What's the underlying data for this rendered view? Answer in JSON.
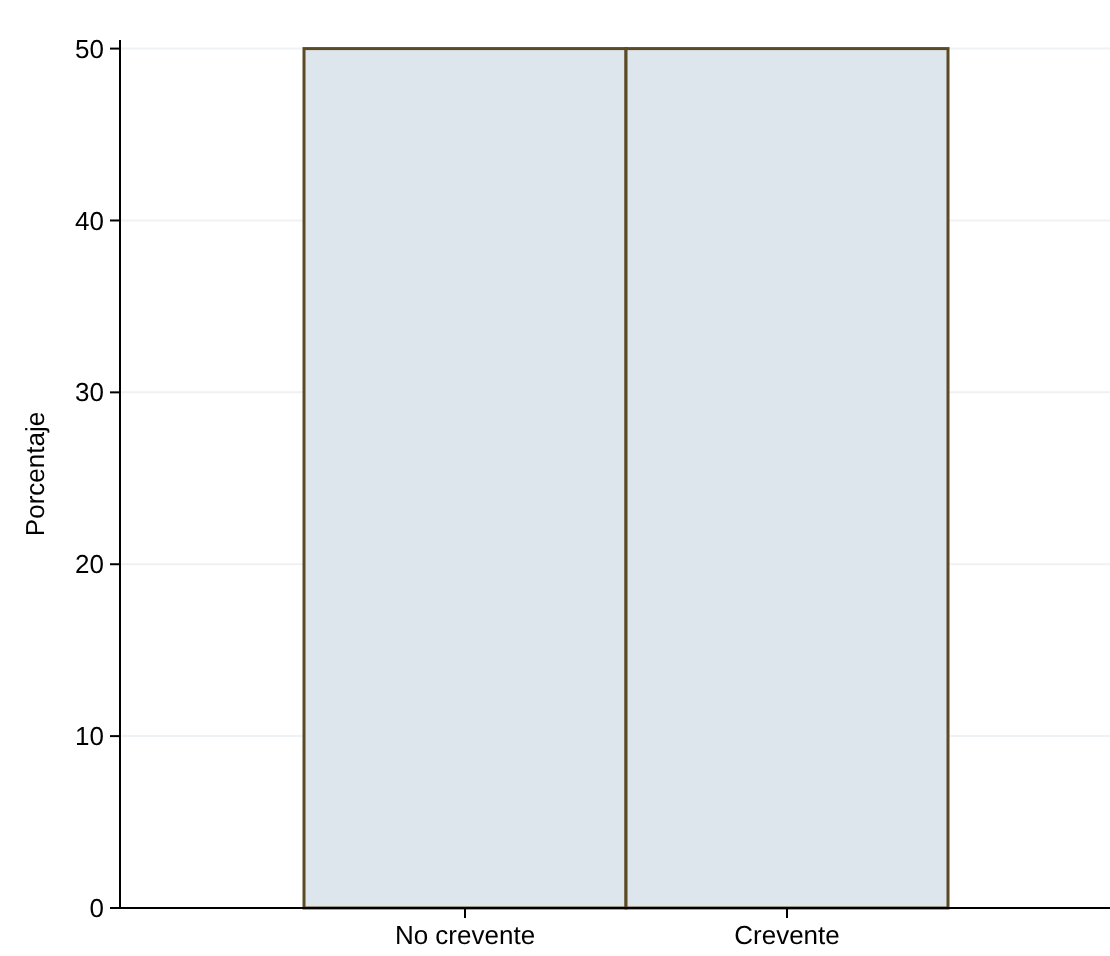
{
  "chart_data": {
    "type": "bar",
    "ylabel": "Porcentaje",
    "categories": [
      "No crevente",
      "Crevente"
    ],
    "values": [
      50,
      50
    ],
    "color": "#dce6ec",
    "ylim": [
      0,
      50.5
    ],
    "yticks": [
      0,
      10,
      20,
      30,
      40,
      50
    ],
    "grid": "y"
  }
}
